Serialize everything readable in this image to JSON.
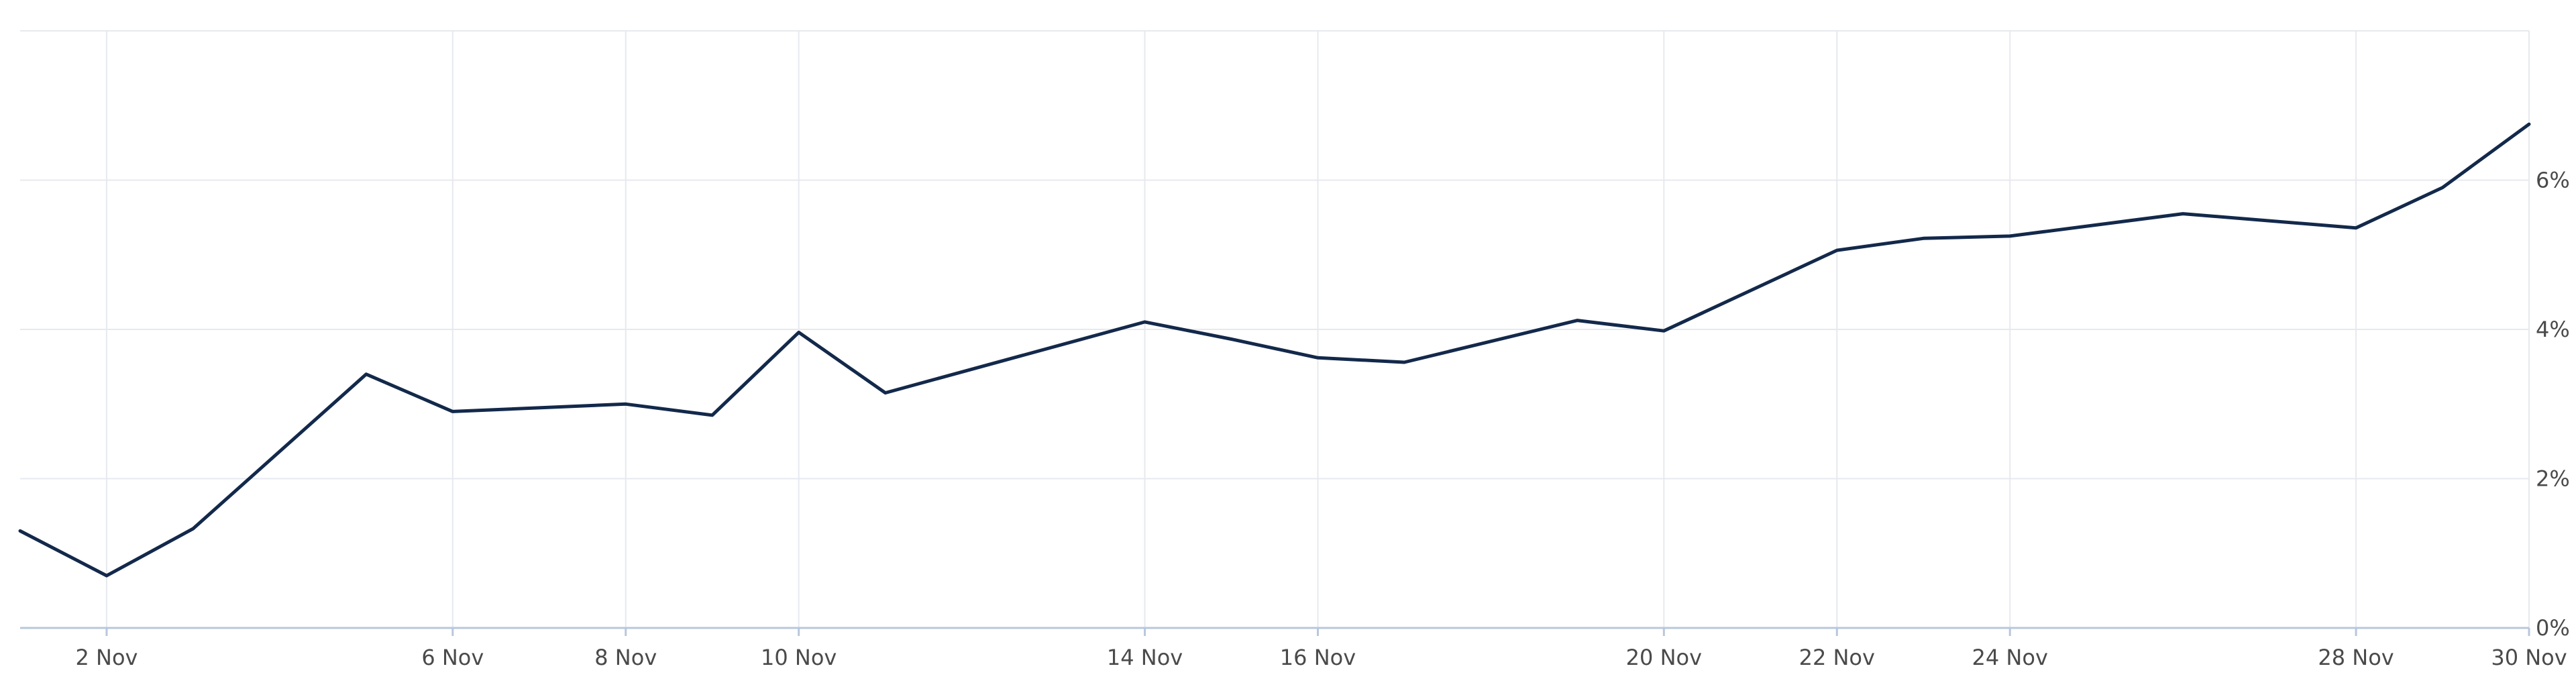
{
  "colors": {
    "series": "#13294b",
    "grid": "#e6e9ee",
    "axis": "#b8c7dc",
    "text": "#4a4a4a",
    "background": "#ffffff"
  },
  "chart_data": {
    "type": "line",
    "title": "",
    "xlabel": "",
    "ylabel": "",
    "grid": true,
    "y_axis_position": "right",
    "xlim": [
      "2023-11-01",
      "2023-11-30"
    ],
    "ylim": [
      0,
      8
    ],
    "x_ticks": [
      {
        "date": "2023-11-02",
        "label": "2 Nov"
      },
      {
        "date": "2023-11-06",
        "label": "6 Nov"
      },
      {
        "date": "2023-11-08",
        "label": "8 Nov"
      },
      {
        "date": "2023-11-10",
        "label": "10 Nov"
      },
      {
        "date": "2023-11-14",
        "label": "14 Nov"
      },
      {
        "date": "2023-11-16",
        "label": "16 Nov"
      },
      {
        "date": "2023-11-20",
        "label": "20 Nov"
      },
      {
        "date": "2023-11-22",
        "label": "22 Nov"
      },
      {
        "date": "2023-11-24",
        "label": "24 Nov"
      },
      {
        "date": "2023-11-28",
        "label": "28 Nov"
      },
      {
        "date": "2023-11-30",
        "label": "30 Nov"
      }
    ],
    "y_ticks": [
      {
        "value": 0,
        "label": "0%"
      },
      {
        "value": 2,
        "label": "2%"
      },
      {
        "value": 4,
        "label": "4%"
      },
      {
        "value": 6,
        "label": "6%"
      }
    ],
    "series": [
      {
        "points": [
          {
            "x": "2023-11-01",
            "y": 1.3
          },
          {
            "x": "2023-11-02",
            "y": 0.7
          },
          {
            "x": "2023-11-03",
            "y": 1.33
          },
          {
            "x": "2023-11-05",
            "y": 3.4
          },
          {
            "x": "2023-11-06",
            "y": 2.9
          },
          {
            "x": "2023-11-08",
            "y": 3.0
          },
          {
            "x": "2023-11-09",
            "y": 2.85
          },
          {
            "x": "2023-11-10",
            "y": 3.96
          },
          {
            "x": "2023-11-11",
            "y": 3.15
          },
          {
            "x": "2023-11-14",
            "y": 4.1
          },
          {
            "x": "2023-11-15",
            "y": 3.87
          },
          {
            "x": "2023-11-16",
            "y": 3.62
          },
          {
            "x": "2023-11-17",
            "y": 3.56
          },
          {
            "x": "2023-11-19",
            "y": 4.12
          },
          {
            "x": "2023-11-20",
            "y": 3.98
          },
          {
            "x": "2023-11-22",
            "y": 5.06
          },
          {
            "x": "2023-11-23",
            "y": 5.22
          },
          {
            "x": "2023-11-24",
            "y": 5.25
          },
          {
            "x": "2023-11-26",
            "y": 5.55
          },
          {
            "x": "2023-11-28",
            "y": 5.36
          },
          {
            "x": "2023-11-29",
            "y": 5.9
          },
          {
            "x": "2023-11-30",
            "y": 6.75
          }
        ]
      }
    ]
  }
}
